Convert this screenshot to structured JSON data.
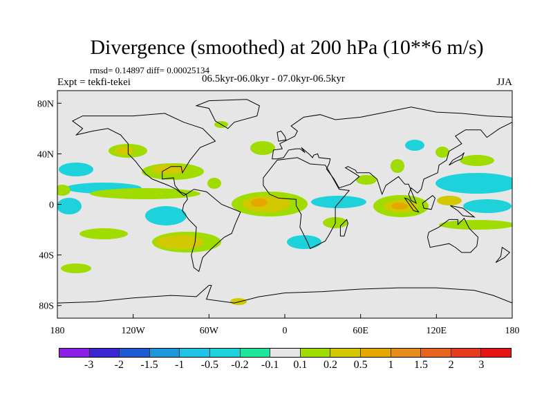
{
  "title": "Divergence (smoothed) at 200 hPa (10**6 m/s)",
  "stats": "rmsd= 0.14897 diff= 0.00025134",
  "experiment": "Expt = tekfi-tekei",
  "period": "06.5kyr-06.0kyr - 07.0kyr-06.5kyr",
  "season": "JJA",
  "axes": {
    "x_ticks": [
      "180",
      "120W",
      "60W",
      "0",
      "60E",
      "120E",
      "180"
    ],
    "y_ticks": [
      "80N",
      "40N",
      "0",
      "40S",
      "80S"
    ]
  },
  "colorbar": {
    "colors": [
      "#8c1ee6",
      "#3c28d2",
      "#1e5ad2",
      "#1e96dc",
      "#1ec3e6",
      "#1ed2dc",
      "#1ee69b",
      "#e6e6e6",
      "#a0dc00",
      "#d2c800",
      "#e6a800",
      "#e68c1e",
      "#e6641e",
      "#e63c1e",
      "#e61414"
    ],
    "labels": [
      "-3",
      "-2",
      "-1.5",
      "-1",
      "-0.5",
      "-0.2",
      "-0.1",
      "0.1",
      "0.2",
      "0.5",
      "1",
      "1.5",
      "2",
      "3"
    ]
  }
}
